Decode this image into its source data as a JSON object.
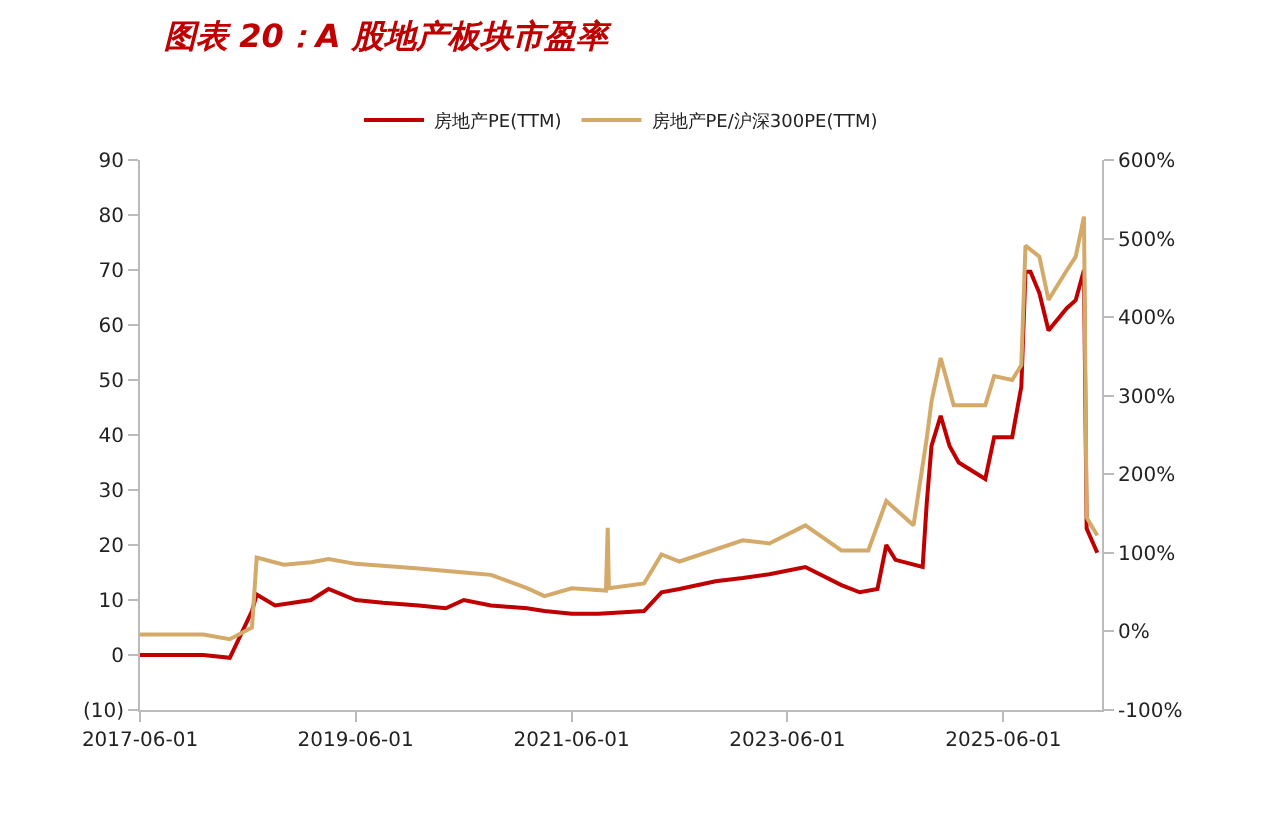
{
  "chart_data": {
    "type": "line",
    "title": "图表 20：A 股地产板块市盈率",
    "xlim": [
      "2017-06-01",
      "2026-05-01"
    ],
    "xticks": [
      "2017-06-01",
      "2019-06-01",
      "2021-06-01",
      "2023-06-01",
      "2025-06-01"
    ],
    "ylim": [
      -10,
      90
    ],
    "yticks": [
      {
        "value": -10,
        "label": "(10)"
      },
      0,
      10,
      20,
      30,
      40,
      50,
      60,
      70,
      80,
      90
    ],
    "y2lim": [
      -100,
      600
    ],
    "y2ticks": [
      {
        "value": -100,
        "label": "-100%"
      },
      {
        "value": 0,
        "label": "0%"
      },
      {
        "value": 100,
        "label": "100%"
      },
      {
        "value": 200,
        "label": "200%"
      },
      {
        "value": 300,
        "label": "300%"
      },
      {
        "value": 400,
        "label": "400%"
      },
      {
        "value": 500,
        "label": "500%"
      },
      {
        "value": 600,
        "label": "600%"
      }
    ],
    "legend": "top",
    "marker": "none",
    "line_style": "solid",
    "series": [
      {
        "name": "房地产PE(TTM)",
        "color": "#c00000",
        "x": [
          "2017-06-01",
          "2018-01-01",
          "2018-04-01",
          "2018-06-15",
          "2018-07-01",
          "2018-09-01",
          "2018-11-01",
          "2019-01-01",
          "2019-03-01",
          "2019-06-01",
          "2019-09-01",
          "2020-01-01",
          "2020-04-01",
          "2020-06-01",
          "2020-09-01",
          "2021-01-01",
          "2021-03-01",
          "2021-06-01",
          "2021-09-01",
          "2022-02-01",
          "2022-04-01",
          "2022-06-01",
          "2022-10-01",
          "2023-01-01",
          "2023-04-01",
          "2023-08-01",
          "2023-12-01",
          "2024-02-01",
          "2024-04-01",
          "2024-05-01",
          "2024-06-01",
          "2024-09-01",
          "2024-09-15",
          "2024-10-01",
          "2024-11-01",
          "2024-12-01",
          "2025-01-01",
          "2025-04-01",
          "2025-05-01",
          "2025-07-01",
          "2025-08-01",
          "2025-08-15",
          "2025-09-01",
          "2025-10-01",
          "2025-11-01",
          "2026-01-01",
          "2026-02-01",
          "2026-03-01",
          "2026-03-10",
          "2026-04-15"
        ],
        "values": [
          0,
          0,
          -0.5,
          8,
          11,
          9,
          9.5,
          10,
          12,
          10,
          9.5,
          9,
          8.5,
          10,
          9,
          8.5,
          8,
          7.5,
          7.5,
          8,
          11.4,
          12,
          13.4,
          14,
          14.7,
          16,
          12.7,
          11.4,
          12,
          20,
          17.3,
          16,
          27.8,
          38,
          43.5,
          38,
          35,
          32,
          39.6,
          39.6,
          48.8,
          69.7,
          69.7,
          65.8,
          59,
          63,
          64.5,
          70,
          23,
          18.6
        ]
      },
      {
        "name": "房地产PE/沪深300PE(TTM)",
        "color": "#d4aa6a",
        "axis": "y2",
        "x": [
          "2017-06-01",
          "2018-01-01",
          "2018-04-01",
          "2018-06-15",
          "2018-07-01",
          "2018-10-01",
          "2019-01-01",
          "2019-03-01",
          "2019-06-01",
          "2020-01-01",
          "2020-06-01",
          "2020-09-01",
          "2021-01-01",
          "2021-03-01",
          "2021-06-01",
          "2021-09-25",
          "2021-10-01",
          "2021-10-05",
          "2022-02-01",
          "2022-04-01",
          "2022-06-01",
          "2023-01-01",
          "2023-04-01",
          "2023-08-01",
          "2023-12-01",
          "2024-03-01",
          "2024-05-01",
          "2024-08-01",
          "2024-09-15",
          "2024-10-01",
          "2024-11-01",
          "2024-12-15",
          "2025-04-01",
          "2025-05-01",
          "2025-07-01",
          "2025-08-01",
          "2025-08-15",
          "2025-10-01",
          "2025-11-01",
          "2026-01-01",
          "2026-02-01",
          "2026-03-01",
          "2026-03-10",
          "2026-04-15"
        ],
        "values": [
          -4,
          -4,
          -10,
          5,
          94,
          85,
          88,
          92,
          86,
          80,
          75,
          72,
          55,
          45,
          55,
          52,
          132,
          55,
          61,
          98,
          89,
          116,
          112,
          135,
          103,
          103,
          166,
          135,
          246,
          293,
          348,
          288,
          288,
          325,
          320,
          339,
          491,
          477,
          422,
          459,
          477,
          528,
          145,
          122
        ]
      }
    ]
  }
}
